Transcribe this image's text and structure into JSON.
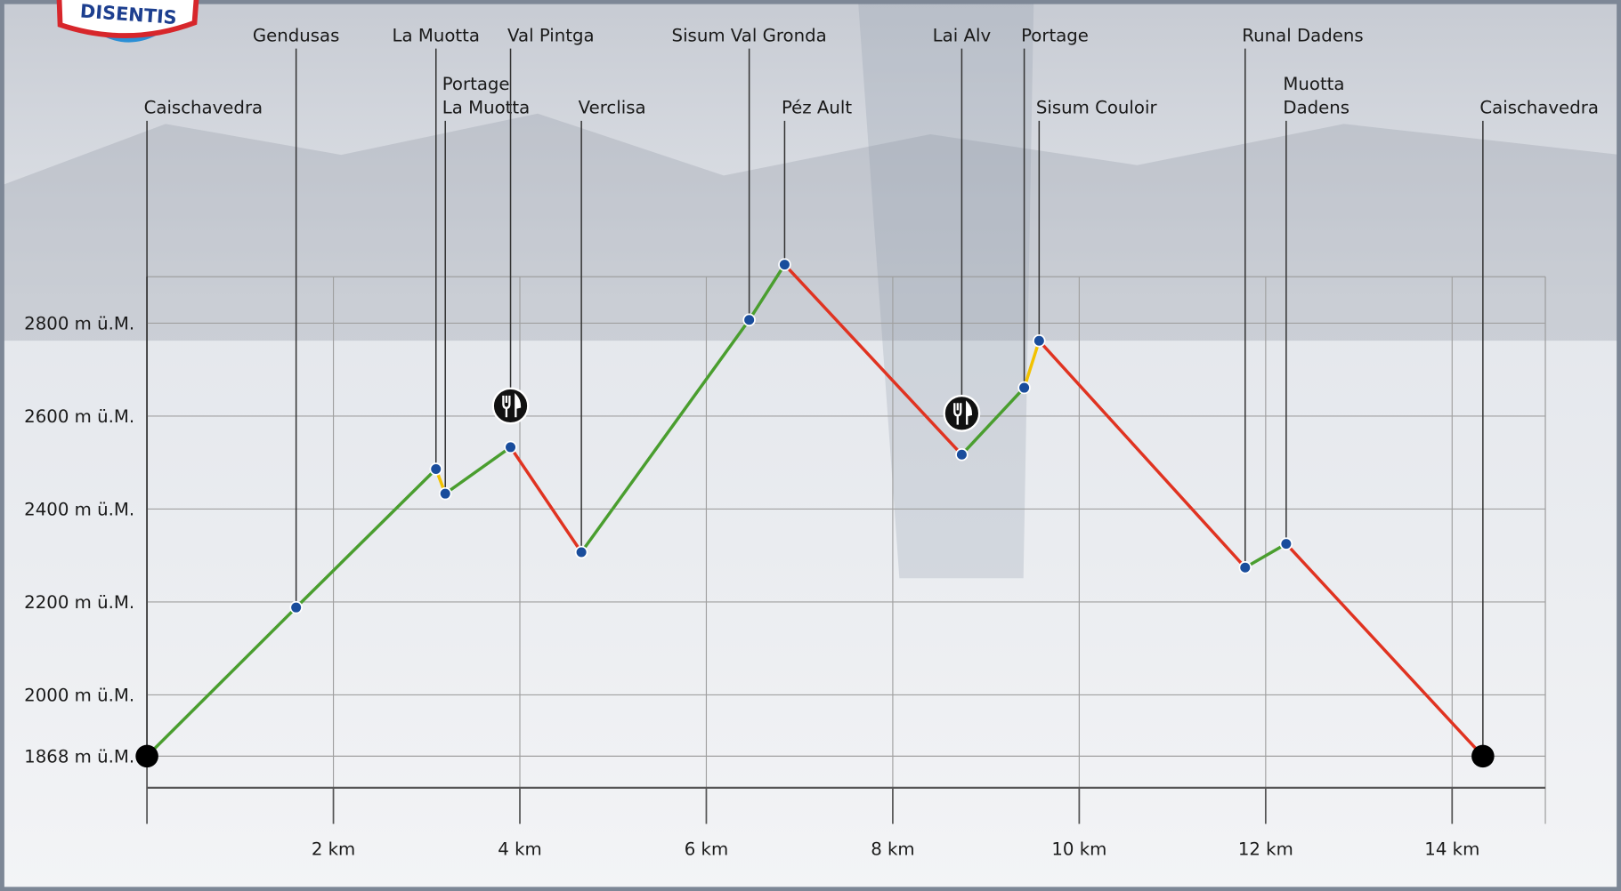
{
  "chart_data": {
    "type": "line",
    "logo": "DISENTIS",
    "x": [
      0,
      1.6,
      3.1,
      3.2,
      3.9,
      4.66,
      6.46,
      6.84,
      8.74,
      9.41,
      9.57,
      11.78,
      12.22,
      14.33
    ],
    "values": [
      1868,
      2188,
      2486,
      2433,
      2533,
      2307,
      2807,
      2926,
      2517,
      2661,
      2762,
      2274,
      2325,
      1868
    ],
    "point_labels": [
      [
        "Caischavedra"
      ],
      [
        "Gendusas"
      ],
      [
        "La Muotta"
      ],
      [
        "Portage",
        "La Muotta"
      ],
      [
        "Val Pintga"
      ],
      [
        "Verclisa"
      ],
      [
        "Sisum Val Gronda"
      ],
      [
        "Péz Ault"
      ],
      [
        "Lai Alv"
      ],
      [
        "Portage"
      ],
      [
        "Sisum Couloir"
      ],
      [
        "Runal Dadens"
      ],
      [
        "Muotta",
        "Dadens"
      ],
      [
        "Caischavedra"
      ]
    ],
    "segment_colors": [
      "#4a9e2f",
      "#4a9e2f",
      "#f2c200",
      "#4a9e2f",
      "#e03321",
      "#4a9e2f",
      "#4a9e2f",
      "#e03321",
      "#4a9e2f",
      "#f2c200",
      "#e03321",
      "#4a9e2f",
      "#e03321"
    ],
    "point_color": "#1a4d9c",
    "xlim": [
      0,
      15
    ],
    "ylim": [
      1800,
      2900
    ],
    "xticks": [
      {
        "value": 2,
        "label": "2 km"
      },
      {
        "value": 4,
        "label": "4 km"
      },
      {
        "value": 6,
        "label": "6 km"
      },
      {
        "value": 8,
        "label": "8 km"
      },
      {
        "value": 10,
        "label": "10 km"
      },
      {
        "value": 12,
        "label": "12 km"
      },
      {
        "value": 14,
        "label": "14 km"
      }
    ],
    "yticks": [
      {
        "value": 1868,
        "label": "1868 m ü.M."
      },
      {
        "value": 2000,
        "label": "2000 m ü.M."
      },
      {
        "value": 2200,
        "label": "2200 m ü.M."
      },
      {
        "value": 2400,
        "label": "2400 m ü.M."
      },
      {
        "value": 2600,
        "label": "2600 m ü.M."
      },
      {
        "value": 2800,
        "label": "2800 m ü.M."
      }
    ],
    "grid": true
  }
}
